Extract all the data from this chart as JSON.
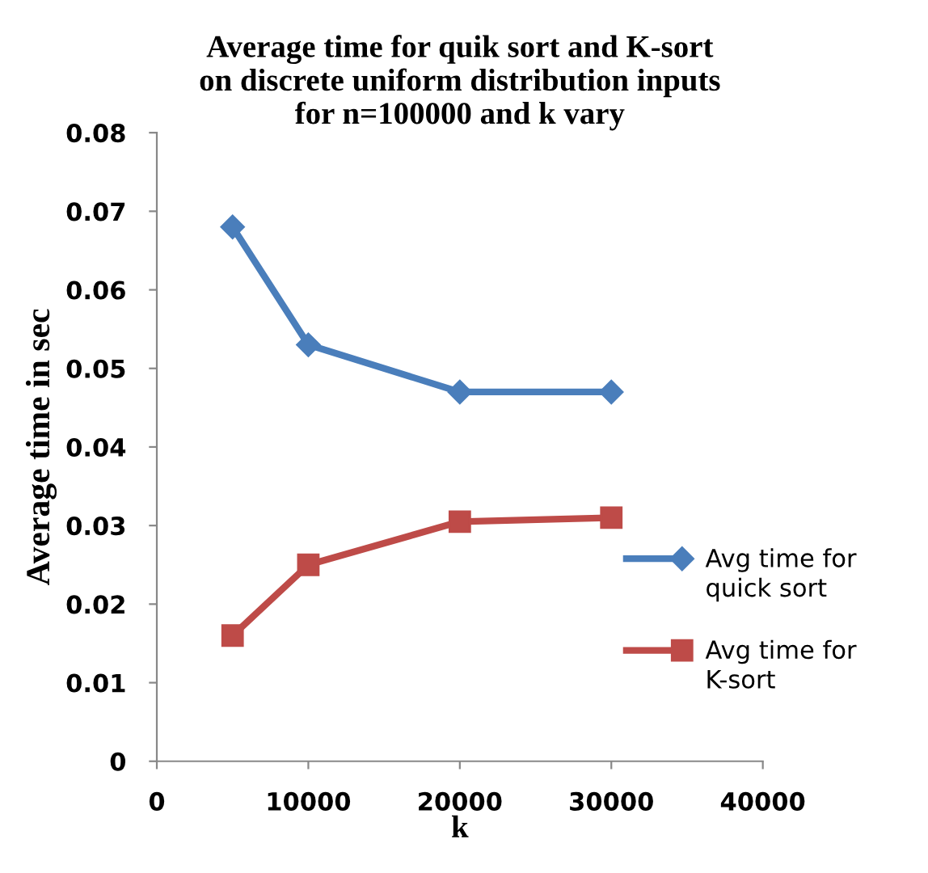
{
  "chart_data": {
    "type": "line",
    "title": "Average time for quik sort and K-sort\non discrete uniform distribution inputs\nfor n=100000 and k vary",
    "xlabel": "k",
    "ylabel": "Average time in sec",
    "x": [
      5000,
      10000,
      20000,
      30000
    ],
    "series": [
      {
        "name": "Avg time for quick sort",
        "color": "#4a7ebb",
        "marker": "diamond",
        "values": [
          0.068,
          0.053,
          0.047,
          0.047
        ]
      },
      {
        "name": "Avg time for K-sort",
        "color": "#be4b48",
        "marker": "square",
        "values": [
          0.016,
          0.025,
          0.0305,
          0.031
        ]
      }
    ],
    "xlim": [
      0,
      40000
    ],
    "xticks": [
      0,
      10000,
      20000,
      30000,
      40000
    ],
    "ylim": [
      0,
      0.08
    ],
    "yticks": [
      0,
      0.01,
      0.02,
      0.03,
      0.04,
      0.05,
      0.06,
      0.07,
      0.08
    ],
    "grid": false,
    "legend": "right",
    "line_style": "solid"
  }
}
